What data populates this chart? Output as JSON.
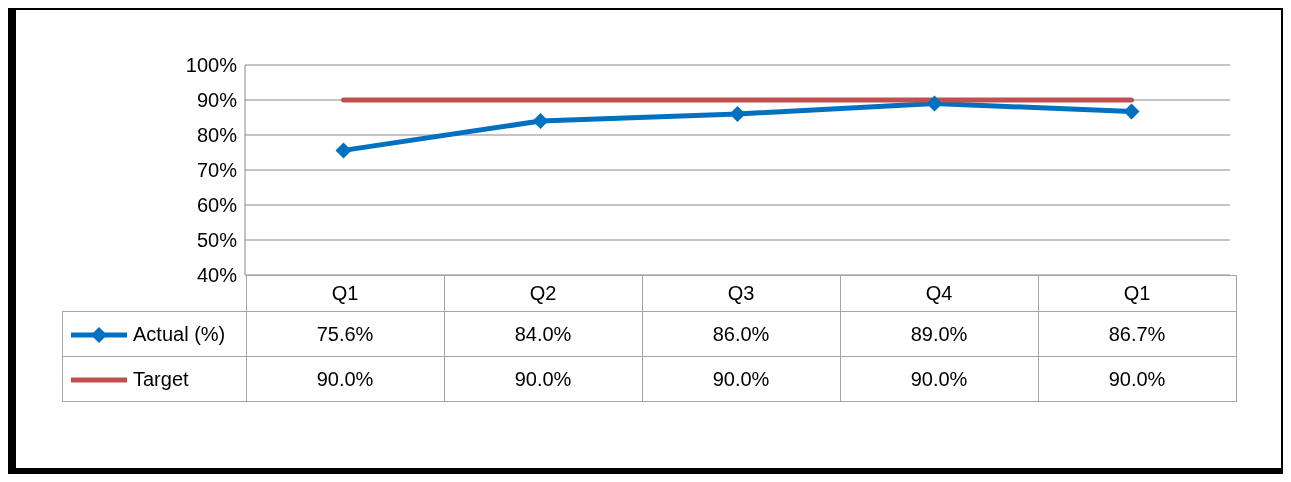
{
  "chart_data": {
    "type": "line",
    "categories": [
      "Q1",
      "Q2",
      "Q3",
      "Q4",
      "Q1"
    ],
    "series": [
      {
        "name": "Actual (%)",
        "color": "#0070c0",
        "values": [
          75.6,
          84.0,
          86.0,
          89.0,
          86.7
        ],
        "value_labels": [
          "75.6%",
          "84.0%",
          "86.0%",
          "89.0%",
          "86.7%"
        ],
        "marker": "diamond"
      },
      {
        "name": "Target",
        "color": "#c0504d",
        "values": [
          90,
          90,
          90,
          90,
          90
        ],
        "value_labels": [
          "90.0%",
          "90.0%",
          "90.0%",
          "90.0%",
          "90.0%"
        ],
        "marker": "none"
      }
    ],
    "ylim": [
      40,
      100
    ],
    "yticks": [
      {
        "value": 40,
        "label": "40%"
      },
      {
        "value": 50,
        "label": "50%"
      },
      {
        "value": 60,
        "label": "60%"
      },
      {
        "value": 70,
        "label": "70%"
      },
      {
        "value": 80,
        "label": "80%"
      },
      {
        "value": 90,
        "label": "90%"
      },
      {
        "value": 100,
        "label": "100%"
      }
    ],
    "grid": "y",
    "legend": "bottom",
    "line_style": "solid"
  }
}
